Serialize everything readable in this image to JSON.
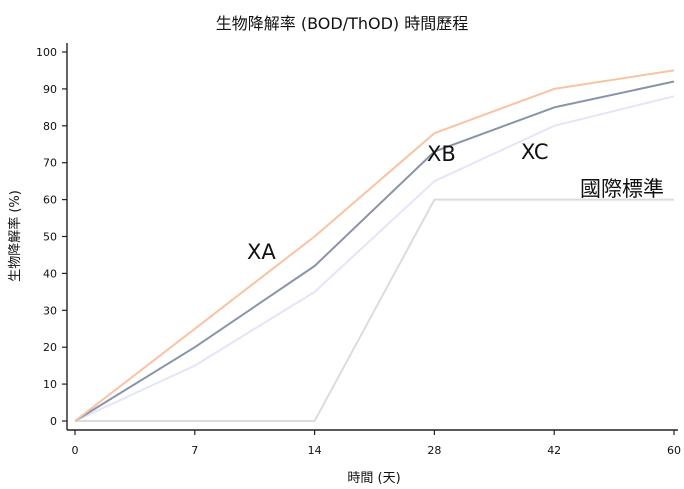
{
  "chart_data": {
    "type": "line",
    "title": "生物降解率 (BOD/ThOD) 時間歷程",
    "xlabel": "時間 (天)",
    "ylabel": "生物降解率 (%)",
    "x": [
      0,
      7,
      14,
      28,
      42,
      60
    ],
    "x_tick_labels": [
      "0",
      "7",
      "14",
      "28",
      "42",
      "60"
    ],
    "x_spacing": "categorical-even",
    "y_ticks": [
      0,
      10,
      20,
      30,
      40,
      50,
      60,
      70,
      80,
      90,
      100
    ],
    "ylim": [
      0,
      100
    ],
    "grid": false,
    "legend": "none",
    "series": [
      {
        "name": "XA",
        "color": "#f9c3a3",
        "values": [
          0,
          25,
          50,
          78,
          90,
          95
        ]
      },
      {
        "name": "XB",
        "color": "#8a94a8",
        "values": [
          0,
          20,
          42,
          73,
          85,
          92
        ]
      },
      {
        "name": "XC",
        "color": "#e3e5f9",
        "values": [
          0,
          15,
          35,
          65,
          80,
          88
        ]
      },
      {
        "name": "國際標準",
        "color": "#dcdcdc",
        "values": [
          0,
          0,
          0,
          60,
          60,
          60
        ]
      }
    ]
  }
}
